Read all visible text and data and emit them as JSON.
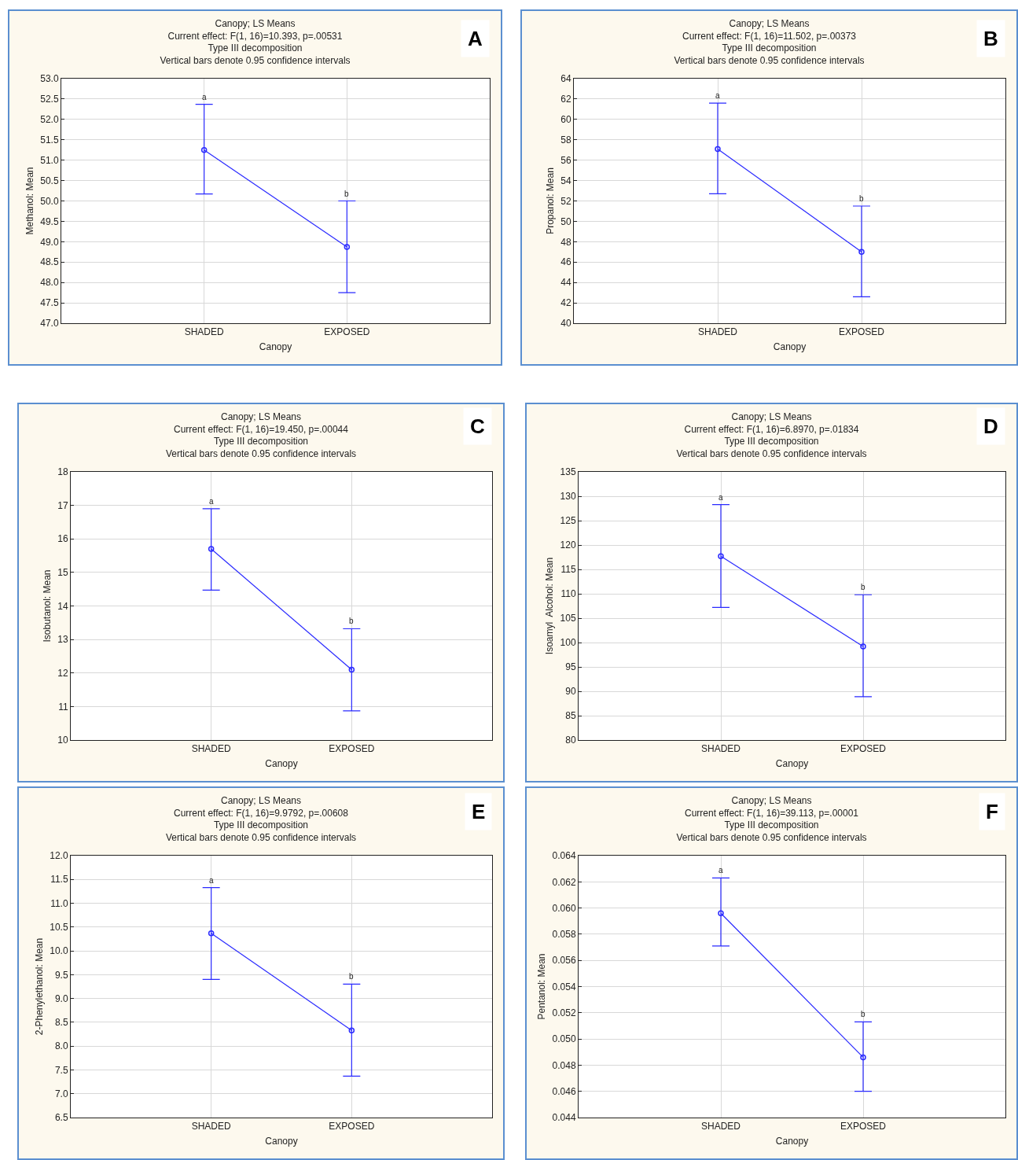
{
  "chart_data": [
    {
      "type": "line",
      "title": "Canopy; LS Means",
      "subtitle": "Current effect: F(1, 16)=10.393, p=.00531\nType III decomposition\nVertical bars denote 0.95 confidence intervals",
      "xlabel": "Canopy",
      "ylabel": "Methanol: Mean",
      "categories": [
        "SHADED",
        "EXPOSED"
      ],
      "series": [
        {
          "color": "#2a2aff",
          "values": [
            51.25,
            48.87
          ],
          "errors": [
            [
              50.17,
              52.37
            ],
            [
              47.75,
              50.0
            ]
          ]
        }
      ],
      "ylim": [
        47,
        53
      ],
      "yticks": [
        {
          "value": 47,
          "label": "47.0"
        },
        47.5,
        {
          "value": 48,
          "label": "48.0"
        },
        48.5,
        {
          "value": 49,
          "label": "49.0"
        },
        49.5,
        {
          "value": 50,
          "label": "50.0"
        },
        50.5,
        {
          "value": 51,
          "label": "51.0"
        },
        51.5,
        {
          "value": 52,
          "label": "52.0"
        },
        52.5,
        {
          "value": 53,
          "label": "53.0"
        }
      ],
      "grid": true,
      "marker": "circle",
      "line_style": "solid",
      "annotations": [
        "A",
        {
          "text": "a",
          "x": "SHADED",
          "y": 52.37
        },
        {
          "text": "b",
          "x": "EXPOSED",
          "y": 50.0
        }
      ]
    },
    {
      "type": "line",
      "title": "Canopy; LS Means",
      "subtitle": "Current effect: F(1, 16)=11.502, p=.00373\nType III decomposition\nVertical bars denote 0.95 confidence intervals",
      "xlabel": "Canopy",
      "ylabel": "Propanol: Mean",
      "categories": [
        "SHADED",
        "EXPOSED"
      ],
      "series": [
        {
          "color": "#2a2aff",
          "values": [
            57.1,
            47.0
          ],
          "errors": [
            [
              52.7,
              61.6
            ],
            [
              42.6,
              51.5
            ]
          ]
        }
      ],
      "ylim": [
        40,
        64
      ],
      "yticks": [
        40,
        42,
        44,
        46,
        48,
        50,
        52,
        54,
        56,
        58,
        60,
        62,
        64
      ],
      "grid": true,
      "marker": "circle",
      "line_style": "solid",
      "annotations": [
        "B",
        {
          "text": "a",
          "x": "SHADED",
          "y": 61.6
        },
        {
          "text": "b",
          "x": "EXPOSED",
          "y": 51.5
        }
      ]
    },
    {
      "type": "line",
      "title": "Canopy; LS Means",
      "subtitle": "Current effect: F(1, 16)=19.450, p=.00044\nType III decomposition\nVertical bars denote 0.95 confidence intervals",
      "xlabel": "Canopy",
      "ylabel": "Isobutanol: Mean",
      "categories": [
        "SHADED",
        "EXPOSED"
      ],
      "series": [
        {
          "color": "#2a2aff",
          "values": [
            15.7,
            12.1
          ],
          "errors": [
            [
              14.47,
              16.9
            ],
            [
              10.87,
              13.32
            ]
          ]
        }
      ],
      "ylim": [
        10,
        18
      ],
      "yticks": [
        10,
        11,
        12,
        13,
        14,
        15,
        16,
        17,
        18
      ],
      "grid": true,
      "marker": "circle",
      "line_style": "solid",
      "annotations": [
        "C",
        {
          "text": "a",
          "x": "SHADED",
          "y": 16.9
        },
        {
          "text": "b",
          "x": "EXPOSED",
          "y": 13.32
        }
      ]
    },
    {
      "type": "line",
      "title": "Canopy; LS Means",
      "subtitle": "Current effect: F(1, 16)=6.8970, p=.01834\nType III decomposition\nVertical bars denote 0.95 confidence intervals",
      "xlabel": "Canopy",
      "ylabel": "Isoamyl  Alcohol: Mean",
      "categories": [
        "SHADED",
        "EXPOSED"
      ],
      "series": [
        {
          "color": "#2a2aff",
          "values": [
            117.7,
            99.2
          ],
          "errors": [
            [
              107.2,
              128.3
            ],
            [
              88.9,
              109.8
            ]
          ]
        }
      ],
      "ylim": [
        80,
        135
      ],
      "yticks": [
        80,
        85,
        90,
        95,
        100,
        105,
        110,
        115,
        120,
        125,
        130,
        135
      ],
      "grid": true,
      "marker": "circle",
      "line_style": "solid",
      "annotations": [
        "D",
        {
          "text": "a",
          "x": "SHADED",
          "y": 128.3
        },
        {
          "text": "b",
          "x": "EXPOSED",
          "y": 109.8
        }
      ]
    },
    {
      "type": "line",
      "title": "Canopy; LS Means",
      "subtitle": "Current effect: F(1, 16)=9.9792, p=.00608\nType III decomposition\nVertical bars denote 0.95 confidence intervals",
      "xlabel": "Canopy",
      "ylabel": "2-Phenylethanol: Mean",
      "categories": [
        "SHADED",
        "EXPOSED"
      ],
      "series": [
        {
          "color": "#2a2aff",
          "values": [
            10.37,
            8.33
          ],
          "errors": [
            [
              9.4,
              11.33
            ],
            [
              7.37,
              9.3
            ]
          ]
        }
      ],
      "ylim": [
        6.5,
        12
      ],
      "yticks": [
        6.5,
        {
          "value": 7,
          "label": "7.0"
        },
        7.5,
        {
          "value": 8,
          "label": "8.0"
        },
        8.5,
        {
          "value": 9,
          "label": "9.0"
        },
        9.5,
        {
          "value": 10,
          "label": "10.0"
        },
        10.5,
        {
          "value": 11,
          "label": "11.0"
        },
        11.5,
        {
          "value": 12,
          "label": "12.0"
        }
      ],
      "grid": true,
      "marker": "circle",
      "line_style": "solid",
      "annotations": [
        "E",
        {
          "text": "a",
          "x": "SHADED",
          "y": 11.33
        },
        {
          "text": "b",
          "x": "EXPOSED",
          "y": 9.3
        }
      ]
    },
    {
      "type": "line",
      "title": "Canopy; LS Means",
      "subtitle": "Current effect: F(1, 16)=39.113, p=.00001\nType III decomposition\nVertical bars denote 0.95 confidence intervals",
      "xlabel": "Canopy",
      "ylabel": "Pentanol: Mean",
      "categories": [
        "SHADED",
        "EXPOSED"
      ],
      "series": [
        {
          "color": "#2a2aff",
          "values": [
            0.0596,
            0.0486
          ],
          "errors": [
            [
              0.0571,
              0.0623
            ],
            [
              0.046,
              0.0513
            ]
          ]
        }
      ],
      "ylim": [
        0.044,
        0.064
      ],
      "yticks": [
        0.044,
        0.046,
        0.048,
        {
          "value": 0.05,
          "label": "0.050"
        },
        0.052,
        0.054,
        0.056,
        0.058,
        {
          "value": 0.06,
          "label": "0.060"
        },
        0.062,
        0.064
      ],
      "grid": true,
      "marker": "circle",
      "line_style": "solid",
      "annotations": [
        "F",
        {
          "text": "a",
          "x": "SHADED",
          "y": 0.0623
        },
        {
          "text": "b",
          "x": "EXPOSED",
          "y": 0.0513
        }
      ]
    }
  ]
}
